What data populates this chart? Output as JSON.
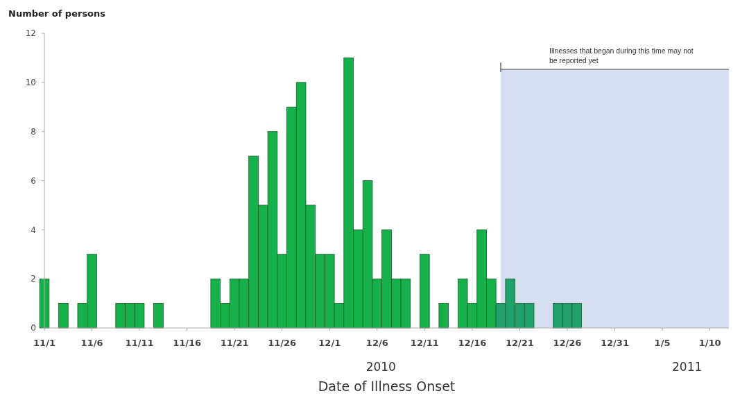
{
  "chart_data": {
    "type": "bar",
    "ylabel": "Number of persons",
    "xlabel": "Date of Illness Onset",
    "x": [
      "2010-11-01",
      "2010-11-02",
      "2010-11-03",
      "2010-11-04",
      "2010-11-05",
      "2010-11-06",
      "2010-11-07",
      "2010-11-08",
      "2010-11-09",
      "2010-11-10",
      "2010-11-11",
      "2010-11-12",
      "2010-11-13",
      "2010-11-14",
      "2010-11-15",
      "2010-11-16",
      "2010-11-17",
      "2010-11-18",
      "2010-11-19",
      "2010-11-20",
      "2010-11-21",
      "2010-11-22",
      "2010-11-23",
      "2010-11-24",
      "2010-11-25",
      "2010-11-26",
      "2010-11-27",
      "2010-11-28",
      "2010-11-29",
      "2010-11-30",
      "2010-12-01",
      "2010-12-02",
      "2010-12-03",
      "2010-12-04",
      "2010-12-05",
      "2010-12-06",
      "2010-12-07",
      "2010-12-08",
      "2010-12-09",
      "2010-12-10",
      "2010-12-11",
      "2010-12-12",
      "2010-12-13",
      "2010-12-14",
      "2010-12-15",
      "2010-12-16",
      "2010-12-17",
      "2010-12-18",
      "2010-12-19",
      "2010-12-20",
      "2010-12-21",
      "2010-12-22",
      "2010-12-23",
      "2010-12-24",
      "2010-12-25",
      "2010-12-26",
      "2010-12-27"
    ],
    "values": [
      2,
      0,
      1,
      0,
      1,
      3,
      0,
      0,
      1,
      1,
      1,
      0,
      1,
      0,
      0,
      0,
      0,
      0,
      2,
      1,
      2,
      2,
      7,
      5,
      8,
      3,
      9,
      10,
      5,
      3,
      3,
      1,
      11,
      4,
      6,
      2,
      4,
      2,
      2,
      0,
      3,
      0,
      1,
      0,
      2,
      1,
      4,
      2,
      1,
      2,
      1,
      1,
      0,
      0,
      1,
      1,
      1
    ],
    "colors": [
      "#16b04a",
      "#16b04a",
      "#16b04a",
      "#16b04a",
      "#16b04a",
      "#16b04a",
      "#16b04a",
      "#16b04a",
      "#16b04a",
      "#16b04a",
      "#16b04a",
      "#16b04a",
      "#16b04a",
      "#16b04a",
      "#16b04a",
      "#16b04a",
      "#16b04a",
      "#16b04a",
      "#16b04a",
      "#16b04a",
      "#16b04a",
      "#16b04a",
      "#16b04a",
      "#16b04a",
      "#16b04a",
      "#16b04a",
      "#16b04a",
      "#16b04a",
      "#16b04a",
      "#16b04a",
      "#16b04a",
      "#16b04a",
      "#16b04a",
      "#16b04a",
      "#16b04a",
      "#16b04a",
      "#16b04a",
      "#16b04a",
      "#16b04a",
      "#16b04a",
      "#16b04a",
      "#16b04a",
      "#16b04a",
      "#16b04a",
      "#16b04a",
      "#16b04a",
      "#16b04a",
      "#16b04a",
      "#1fa06c",
      "#1fa06c",
      "#1fa06c",
      "#1fa06c",
      "#1fa06c",
      "#1fa06c",
      "#1fa06c",
      "#1fa06c",
      "#1fa06c"
    ],
    "xlim": [
      "2010-11-01",
      "2011-01-12"
    ],
    "xticks": [
      {
        "value": "2010-11-01",
        "label": "11/1"
      },
      {
        "value": "2010-11-06",
        "label": "11/6"
      },
      {
        "value": "2010-11-11",
        "label": "11/11"
      },
      {
        "value": "2010-11-16",
        "label": "11/16"
      },
      {
        "value": "2010-11-21",
        "label": "11/21"
      },
      {
        "value": "2010-11-26",
        "label": "11/26"
      },
      {
        "value": "2010-12-01",
        "label": "12/1"
      },
      {
        "value": "2010-12-06",
        "label": "12/6"
      },
      {
        "value": "2010-12-11",
        "label": "12/11"
      },
      {
        "value": "2010-12-16",
        "label": "12/16"
      },
      {
        "value": "2010-12-21",
        "label": "12/21"
      },
      {
        "value": "2010-12-26",
        "label": "12/26"
      },
      {
        "value": "2010-12-31",
        "label": "12/31"
      },
      {
        "value": "2011-01-05",
        "label": "1/5"
      },
      {
        "value": "2011-01-10",
        "label": "1/10"
      }
    ],
    "ylim": [
      0,
      12
    ],
    "yticks": [
      0,
      2,
      4,
      6,
      8,
      10,
      12
    ],
    "grid": false,
    "bands": [
      {
        "axis": "x",
        "from": "2010-12-19",
        "to": "2011-01-12",
        "label": "Illnesses that began during this time may not be reported yet",
        "color": "#d5dff0"
      }
    ],
    "annotations": [
      "2010",
      "2011"
    ]
  }
}
